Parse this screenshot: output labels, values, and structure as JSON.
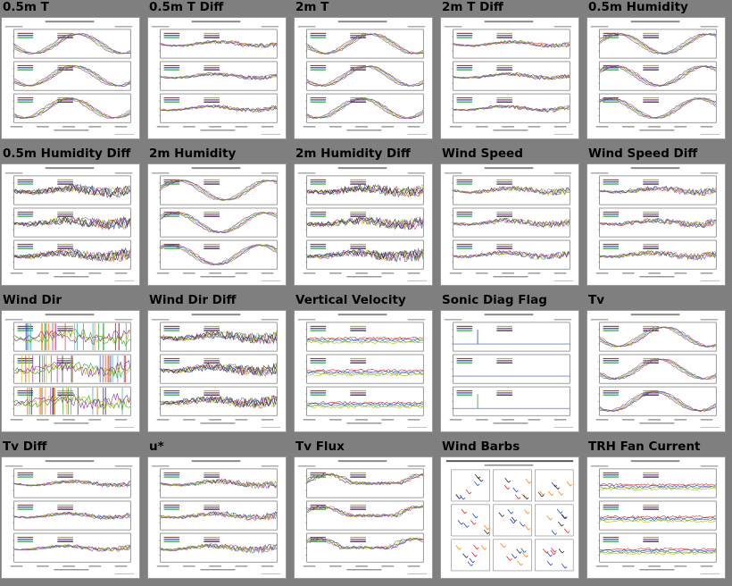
{
  "thumbnails": [
    {
      "title": "0.5m T",
      "kind": "temp"
    },
    {
      "title": "0.5m T Diff",
      "kind": "diff"
    },
    {
      "title": "2m T",
      "kind": "temp"
    },
    {
      "title": "2m T Diff",
      "kind": "diff"
    },
    {
      "title": "0.5m Humidity",
      "kind": "humid"
    },
    {
      "title": "0.5m Humidity Diff",
      "kind": "bigdiff"
    },
    {
      "title": "2m Humidity",
      "kind": "humid"
    },
    {
      "title": "2m Humidity Diff",
      "kind": "bigdiff"
    },
    {
      "title": "Wind Speed",
      "kind": "noisy"
    },
    {
      "title": "Wind Speed Diff",
      "kind": "noisy"
    },
    {
      "title": "Wind Dir",
      "kind": "winddir"
    },
    {
      "title": "Wind Dir Diff",
      "kind": "bigdiff"
    },
    {
      "title": "Vertical Velocity",
      "kind": "flat"
    },
    {
      "title": "Sonic Diag Flag",
      "kind": "spikes"
    },
    {
      "title": "Tv",
      "kind": "temp"
    },
    {
      "title": "Tv Diff",
      "kind": "diff"
    },
    {
      "title": "u*",
      "kind": "noisy"
    },
    {
      "title": "Tv Flux",
      "kind": "flux"
    },
    {
      "title": "Wind Barbs",
      "kind": "barbs"
    },
    {
      "title": "TRH Fan Current",
      "kind": "flat"
    }
  ],
  "palette": [
    "#d62728",
    "#1f3fd0",
    "#2ca02c",
    "#b8b800",
    "#8c2bb0",
    "#222222",
    "#ff7f0e",
    "#17a2b8"
  ]
}
